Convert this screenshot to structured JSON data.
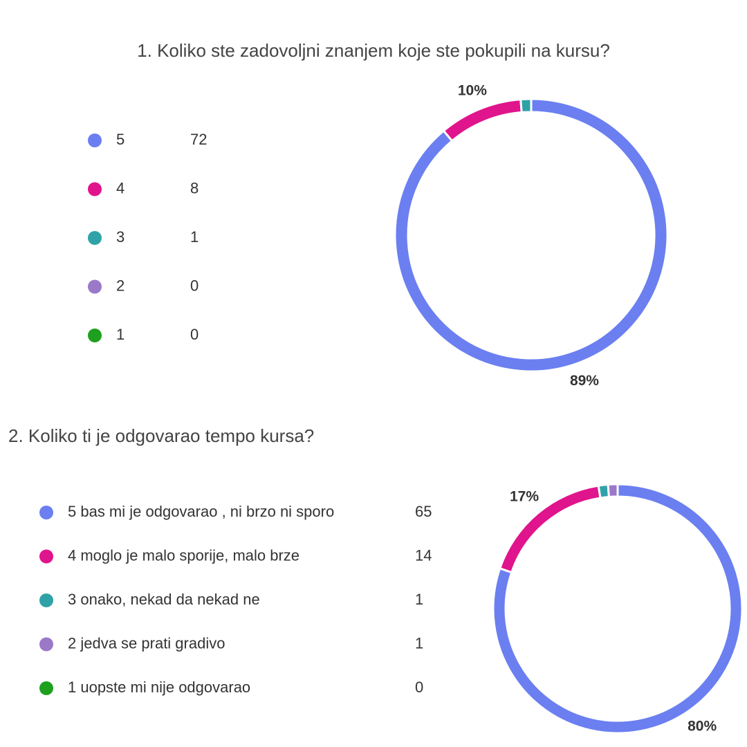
{
  "chart_data": [
    {
      "type": "pie",
      "donut": true,
      "title": "1. Koliko ste zadovoljni znanjem koje ste pokupili na kursu?",
      "categories": [
        "5",
        "4",
        "3",
        "2",
        "1"
      ],
      "values": [
        72,
        8,
        1,
        0,
        0
      ],
      "colors": [
        "#6b7ff0",
        "#e0148c",
        "#2fa2a7",
        "#9a79c9",
        "#1ea01e"
      ],
      "percent_labels": [
        "89%",
        "10%",
        null,
        null,
        null
      ]
    },
    {
      "type": "pie",
      "donut": true,
      "title": "2. Koliko ti je odgovarao tempo kursa?",
      "categories": [
        "5 bas mi je odgovarao , ni brzo ni sporo",
        "4 moglo je malo sporije, malo brze",
        "3 onako, nekad da nekad ne",
        "2 jedva se prati gradivo",
        "1 uopste mi nije odgovarao"
      ],
      "values": [
        65,
        14,
        1,
        1,
        0
      ],
      "colors": [
        "#6b7ff0",
        "#e0148c",
        "#2fa2a7",
        "#9a79c9",
        "#1ea01e"
      ],
      "percent_labels": [
        "80%",
        "17%",
        null,
        null,
        null
      ]
    }
  ]
}
